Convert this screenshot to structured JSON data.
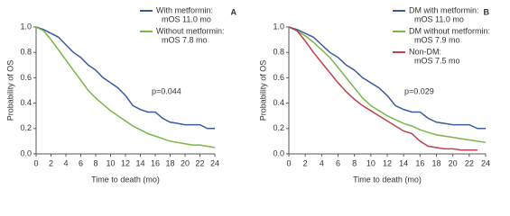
{
  "chart_data": [
    {
      "type": "line",
      "panel": "A",
      "x_label": "Time to death (mo)",
      "y_label": "Probability of OS",
      "annotation": "p=0.044",
      "x": [
        0,
        1,
        2,
        3,
        4,
        5,
        6,
        7,
        8,
        9,
        10,
        11,
        12,
        13,
        14,
        15,
        16,
        17,
        18,
        19,
        20,
        21,
        22,
        23,
        24
      ],
      "xlim": [
        0,
        24
      ],
      "xticks": [
        0,
        2,
        4,
        6,
        8,
        10,
        12,
        14,
        16,
        18,
        20,
        22,
        24
      ],
      "ylim": [
        0,
        1
      ],
      "yticks": [
        {
          "value": 0,
          "label": "0.0"
        },
        0.2,
        0.4,
        0.6,
        0.8,
        {
          "value": 1,
          "label": "1.0"
        }
      ],
      "series": [
        {
          "name": "With metformin:",
          "note": "mOS 11.0 mo",
          "color": "#3b5b9c",
          "values": [
            1.0,
            0.98,
            0.95,
            0.92,
            0.86,
            0.8,
            0.76,
            0.7,
            0.66,
            0.6,
            0.56,
            0.52,
            0.46,
            0.38,
            0.35,
            0.33,
            0.33,
            0.28,
            0.25,
            0.24,
            0.23,
            0.23,
            0.23,
            0.2,
            0.2
          ]
        },
        {
          "name": "Without metformin:",
          "note": "mOS 7.8 mo",
          "color": "#7ab648",
          "values": [
            1.0,
            0.97,
            0.9,
            0.82,
            0.74,
            0.66,
            0.58,
            0.5,
            0.44,
            0.39,
            0.34,
            0.3,
            0.26,
            0.22,
            0.19,
            0.16,
            0.14,
            0.12,
            0.1,
            0.09,
            0.08,
            0.07,
            0.07,
            0.06,
            0.05
          ]
        }
      ]
    },
    {
      "type": "line",
      "panel": "B",
      "x_label": "Time to death (mo)",
      "y_label": "Probability of OS",
      "annotation": "p=0.029",
      "x": [
        0,
        1,
        2,
        3,
        4,
        5,
        6,
        7,
        8,
        9,
        10,
        11,
        12,
        13,
        14,
        15,
        16,
        17,
        18,
        19,
        20,
        21,
        22,
        23,
        24
      ],
      "xlim": [
        0,
        24
      ],
      "xticks": [
        0,
        2,
        4,
        6,
        8,
        10,
        12,
        14,
        16,
        18,
        20,
        22,
        24
      ],
      "ylim": [
        0,
        1
      ],
      "yticks": [
        {
          "value": 0,
          "label": "0.0"
        },
        0.2,
        0.4,
        0.6,
        0.8,
        {
          "value": 1,
          "label": "1.0"
        }
      ],
      "series": [
        {
          "name": "DM with metformin:",
          "note": "mOS 11.0 mo",
          "color": "#3b5b9c",
          "values": [
            1.0,
            0.98,
            0.95,
            0.92,
            0.86,
            0.8,
            0.76,
            0.7,
            0.66,
            0.6,
            0.56,
            0.52,
            0.46,
            0.38,
            0.35,
            0.33,
            0.33,
            0.28,
            0.25,
            0.24,
            0.23,
            0.23,
            0.23,
            0.2,
            0.2
          ]
        },
        {
          "name": "DM without metformin:",
          "note": "mOS 7.9 mo",
          "color": "#7ab648",
          "values": [
            1.0,
            0.97,
            0.93,
            0.88,
            0.82,
            0.76,
            0.68,
            0.6,
            0.52,
            0.44,
            0.38,
            0.34,
            0.3,
            0.27,
            0.24,
            0.22,
            0.19,
            0.17,
            0.15,
            0.14,
            0.13,
            0.12,
            0.11,
            0.1,
            0.09
          ]
        },
        {
          "name": "Non-DM:",
          "note": "mOS 7.5 mo",
          "color": "#c0414e",
          "values": [
            1.0,
            0.97,
            0.89,
            0.8,
            0.72,
            0.64,
            0.56,
            0.49,
            0.43,
            0.38,
            0.34,
            0.3,
            0.26,
            0.22,
            0.18,
            0.16,
            0.1,
            0.06,
            0.05,
            0.04,
            0.04,
            0.03,
            0.03,
            0.03,
            null
          ]
        }
      ]
    }
  ]
}
